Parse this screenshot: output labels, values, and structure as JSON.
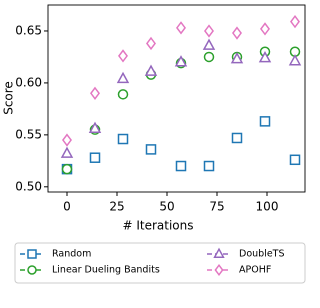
{
  "chart_data": {
    "type": "line",
    "x_label": "# Iterations",
    "y_label": "Score",
    "x": [
      0,
      14,
      28,
      42,
      57,
      71,
      85,
      99,
      114
    ],
    "series": [
      {
        "name": "Random",
        "color": "#1f77b4",
        "marker": "square",
        "values": [
          0.517,
          0.528,
          0.546,
          0.536,
          0.52,
          0.52,
          0.547,
          0.563,
          0.526
        ]
      },
      {
        "name": "Linear Dueling Bandits",
        "color": "#2ca02c",
        "marker": "circle",
        "values": [
          0.517,
          0.555,
          0.589,
          0.608,
          0.619,
          0.625,
          0.625,
          0.63,
          0.63
        ]
      },
      {
        "name": "DoubleTS",
        "color": "#9467bd",
        "marker": "triangle",
        "values": [
          0.532,
          0.556,
          0.604,
          0.611,
          0.62,
          0.636,
          0.623,
          0.624,
          0.621
        ]
      },
      {
        "name": "APOHF",
        "color": "#e377c2",
        "marker": "diamond",
        "values": [
          0.545,
          0.59,
          0.626,
          0.638,
          0.653,
          0.65,
          0.648,
          0.652,
          0.659
        ]
      }
    ],
    "xlim": [
      -9.5,
      119
    ],
    "xticks": [
      0,
      25,
      50,
      75,
      100
    ],
    "ylim": [
      0.495,
      0.675
    ],
    "yticks": [
      {
        "value": 0.5,
        "label": "0.50"
      },
      {
        "value": 0.55,
        "label": "0.55"
      },
      {
        "value": 0.6,
        "label": "0.60"
      },
      {
        "value": 0.65,
        "label": "0.65"
      }
    ]
  }
}
